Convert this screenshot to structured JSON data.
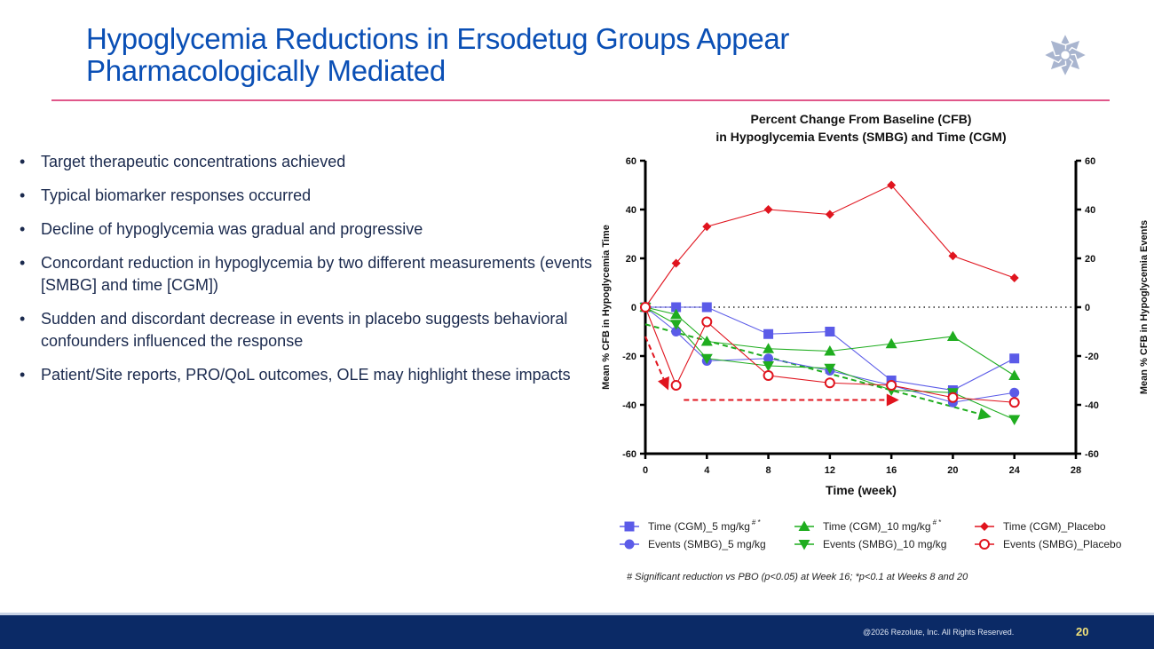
{
  "slide": {
    "title_line1": "Hypoglycemia Reductions in Ersodetug Groups Appear",
    "title_line2": "Pharmacologically Mediated",
    "logo_icon": "rosette-logo-icon",
    "bullets": [
      "Target therapeutic concentrations achieved",
      "Typical biomarker responses occurred",
      "Decline of hypoglycemia was gradual and progressive",
      "Concordant reduction in hypoglycemia by two different measurements (events [SMBG] and time [CGM])",
      "Sudden and discordant decrease in events in placebo suggests behavioral confounders influenced the response",
      "Patient/Site reports, PRO/QoL outcomes, OLE may highlight these impacts"
    ],
    "bullet_char": "•",
    "footer": {
      "copyright": "@2026 Rezolute, Inc. All Rights Reserved.",
      "page_number": "20"
    },
    "colors": {
      "title": "#0a4fb5",
      "rule": "#e0578a",
      "footer_bg": "#0b2a66",
      "page_number": "#f2e27a"
    }
  },
  "chart_data": {
    "type": "line",
    "title_line1": "Percent Change From Baseline (CFB)",
    "title_line2": "in Hypoglycemia Events (SMBG) and Time (CGM)",
    "xlabel": "Time (week)",
    "ylabel_left": "Mean % CFB in Hypoglycemia Time",
    "ylabel_right": "Mean % CFB in Hypoglycemia Events",
    "xlim": [
      0,
      28
    ],
    "ylim": [
      -60,
      60
    ],
    "x_ticks": [
      0,
      4,
      8,
      12,
      16,
      20,
      24,
      28
    ],
    "y_ticks": [
      60,
      40,
      20,
      0,
      -20,
      -40,
      -60
    ],
    "zero_reference_line": "dotted",
    "x": [
      0,
      2,
      4,
      8,
      12,
      16,
      20,
      24
    ],
    "series": [
      {
        "name": "Time (CGM)_5 mg/kg",
        "superscript": "# *",
        "marker": "square",
        "filled": true,
        "color": "#5b5be8",
        "values": [
          0,
          0,
          0,
          -11,
          -10,
          -30,
          -34,
          -21
        ]
      },
      {
        "name": "Events (SMBG)_5 mg/kg",
        "superscript": "",
        "marker": "circle",
        "filled": true,
        "color": "#5b5be8",
        "values": [
          0,
          -10,
          -22,
          -21,
          -26,
          -32,
          -39,
          -35
        ]
      },
      {
        "name": "Time (CGM)_10 mg/kg",
        "superscript": "# *",
        "marker": "triangle-up",
        "filled": true,
        "color": "#1fad1f",
        "values": [
          0,
          -3,
          -14,
          -17,
          -18,
          -15,
          -12,
          -28
        ]
      },
      {
        "name": "Events (SMBG)_10 mg/kg",
        "superscript": "",
        "marker": "triangle-down",
        "filled": true,
        "color": "#1fad1f",
        "values": [
          0,
          -7,
          -21,
          -24,
          -25,
          -34,
          -35,
          -46
        ]
      },
      {
        "name": "Time (CGM)_Placebo",
        "superscript": "",
        "marker": "diamond",
        "filled": true,
        "color": "#e0141e",
        "values": [
          0,
          18,
          33,
          40,
          38,
          50,
          21,
          12
        ]
      },
      {
        "name": "Events (SMBG)_Placebo",
        "superscript": "",
        "marker": "circle-open",
        "filled": false,
        "color": "#e0141e",
        "values": [
          0,
          -32,
          -6,
          -28,
          -31,
          -32,
          -37,
          -39
        ]
      }
    ],
    "annotation_arrows": [
      {
        "name": "placebo-drop-arrow",
        "color": "#e0141e",
        "from": [
          0,
          -12
        ],
        "to": [
          1.5,
          -34
        ]
      },
      {
        "name": "placebo-flat-arrow",
        "color": "#e0141e",
        "from": [
          2.5,
          -38
        ],
        "to": [
          16.5,
          -38
        ]
      },
      {
        "name": "drug-trend-arrow",
        "color": "#1fad1f",
        "from": [
          0,
          -7
        ],
        "to": [
          22.5,
          -45
        ]
      }
    ],
    "legend_position": "bottom",
    "footnote": "# Significant reduction vs PBO (p<0.05) at Week 16; *p<0.1 at Weeks 8 and 20"
  }
}
